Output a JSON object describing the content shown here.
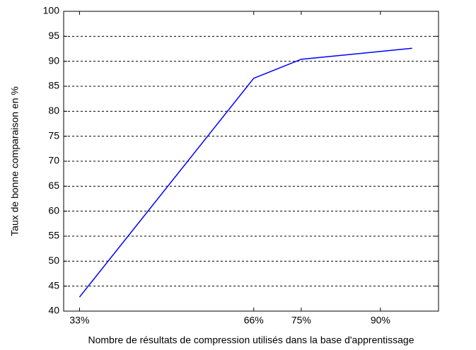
{
  "chart_data": {
    "type": "line",
    "x_label": "Nombre de résultats de compression utilisés dans la base d'apprentissage",
    "y_label": "Taux de bonne comparaison en %",
    "x": [
      33,
      66,
      75,
      96
    ],
    "series": [
      {
        "color": "#0000ff",
        "values": [
          42.8,
          86.6,
          90.4,
          92.6
        ]
      }
    ],
    "xlim": [
      30,
      101
    ],
    "xticks": [
      {
        "value": 33,
        "label": "33%"
      },
      {
        "value": 66,
        "label": "66%"
      },
      {
        "value": 75,
        "label": "75%"
      },
      {
        "value": 90,
        "label": "90%"
      }
    ],
    "ylim": [
      40,
      100
    ],
    "yticks": [
      40,
      45,
      50,
      55,
      60,
      65,
      70,
      75,
      80,
      85,
      90,
      95,
      100
    ],
    "grid": true
  }
}
